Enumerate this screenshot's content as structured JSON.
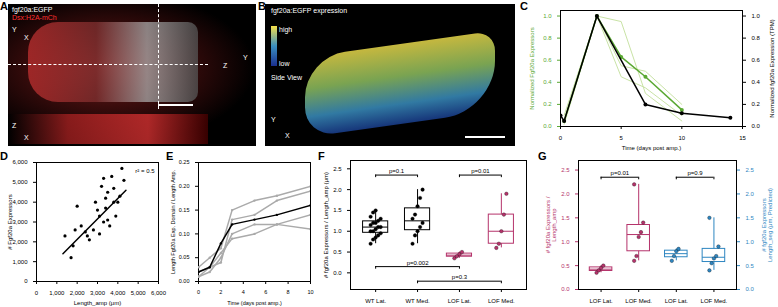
{
  "images": [
    {
      "panel": "A",
      "labels": [
        "fgf20a:EGFP",
        "Dsx:H2A-mCh"
      ],
      "axes": [
        "Y",
        "X",
        "Z",
        "X",
        "Y",
        "Z"
      ]
    },
    {
      "panel": "B",
      "title": "fgf20a:EGFP expression",
      "colorbar": [
        "high",
        "low"
      ],
      "view": "Side View",
      "axes": [
        "Y",
        "X"
      ]
    }
  ],
  "chart_data": [
    {
      "panel": "C",
      "type": "line",
      "x_label": "Time (days post amp.)",
      "y_label": "Normalized Fgf20a Expressors",
      "y2_label": "Normalized fgf20a Expression (TPM)",
      "xlim": [
        0,
        15
      ],
      "xticks": [
        0,
        5,
        10,
        15
      ],
      "ylim": [
        0,
        1.05
      ],
      "yticks": [
        0,
        0.2,
        0.4,
        0.6,
        0.8,
        1
      ],
      "y2lim": [
        0,
        1.05
      ],
      "y2ticks": [
        0,
        0.2,
        0.4,
        0.6,
        0.8,
        1
      ],
      "series": [
        {
          "color": "#c9e3a6",
          "x": [
            0.3,
            3,
            5,
            7,
            10
          ],
          "values": [
            0.02,
            1,
            0.95,
            0.3,
            0.05
          ]
        },
        {
          "color": "#c9e3a6",
          "x": [
            0.3,
            3,
            5,
            7,
            10
          ],
          "values": [
            0.1,
            1,
            0.55,
            0.5,
            0.2
          ]
        },
        {
          "color": "#c9e3a6",
          "x": [
            0.3,
            3,
            5,
            7,
            10
          ],
          "values": [
            0.05,
            1,
            0.45,
            0.35,
            0.1
          ]
        },
        {
          "color": "#5aa832",
          "marker": "circle",
          "x": [
            0.3,
            3,
            5,
            7,
            10
          ],
          "values": [
            0.05,
            1,
            0.63,
            0.45,
            0.15
          ]
        },
        {
          "color": "#000000",
          "marker": "circle",
          "axis": "y2",
          "x": [
            0,
            0.3,
            3,
            7,
            10,
            14
          ],
          "values": [
            0.1,
            0.05,
            1,
            0.2,
            0.12,
            0.08
          ]
        }
      ]
    },
    {
      "panel": "D",
      "type": "scatter",
      "x_label": "Length_amp (μm)",
      "y_label": "# Fgf20a Expressors",
      "xlim": [
        0,
        6000
      ],
      "xticks": [
        0,
        1000,
        2000,
        3000,
        4000,
        5000,
        6000
      ],
      "ylim": [
        0,
        6000
      ],
      "yticks": [
        0,
        1000,
        2000,
        3000,
        4000,
        5000,
        6000
      ],
      "color": "#000000",
      "legend": "top-right",
      "x": [
        1400,
        1700,
        1800,
        1900,
        2000,
        2200,
        2400,
        2500,
        2600,
        2800,
        2900,
        3000,
        3100,
        3100,
        3200,
        3300,
        3300,
        3400,
        3400,
        3500,
        3500,
        3600,
        3700,
        3800,
        3800,
        3900,
        4000,
        4100,
        4200,
        4300
      ],
      "values": [
        2300,
        1200,
        1800,
        2600,
        3800,
        2800,
        2500,
        2300,
        2100,
        2600,
        4000,
        3600,
        3300,
        2400,
        4800,
        5200,
        3000,
        4200,
        3700,
        3100,
        4500,
        2800,
        5300,
        4000,
        4700,
        3300,
        4000,
        4300,
        5700,
        5100
      ],
      "fit": {
        "label": "r² = 0.5",
        "x": [
          1300,
          4400
        ],
        "values": [
          1400,
          4600
        ]
      }
    },
    {
      "panel": "E",
      "type": "line",
      "x_label": "Time (days post amp.)",
      "y_label": "Length Fgf20a Exp. Domain / Length Amp.",
      "xlim": [
        0,
        10
      ],
      "xticks": [
        0,
        2,
        4,
        6,
        8,
        10
      ],
      "ylim": [
        0,
        0.25
      ],
      "yticks": [
        0,
        0.05,
        0.1,
        0.15,
        0.2,
        0.25
      ],
      "series": [
        {
          "color": "#aaaaaa",
          "x": [
            0,
            1,
            2,
            3,
            5,
            7,
            10
          ],
          "values": [
            0.03,
            0.05,
            0.07,
            0.15,
            0.17,
            0.18,
            0.2
          ]
        },
        {
          "color": "#aaaaaa",
          "x": [
            0,
            1,
            2,
            3,
            5,
            7,
            10
          ],
          "values": [
            0.01,
            0.02,
            0.05,
            0.1,
            0.12,
            0.12,
            0.11
          ]
        },
        {
          "color": "#aaaaaa",
          "x": [
            0,
            1,
            2,
            3,
            5,
            7,
            10
          ],
          "values": [
            0.02,
            0.03,
            0.04,
            0.13,
            0.14,
            0.17,
            0.19
          ]
        },
        {
          "color": "#aaaaaa",
          "x": [
            0,
            1,
            2,
            3,
            5,
            7,
            10
          ],
          "values": [
            0.01,
            0.03,
            0.06,
            0.09,
            0.1,
            0.12,
            0.14
          ]
        },
        {
          "color": "#000000",
          "x": [
            0,
            1,
            2,
            3,
            5,
            7,
            10
          ],
          "values": [
            0.02,
            0.03,
            0.08,
            0.12,
            0.13,
            0.14,
            0.16
          ]
        }
      ]
    },
    {
      "panel": "F",
      "type": "box",
      "y_label": "# fgf20a Expressors / Length_amp (μm)",
      "categories": [
        "WT Lat.",
        "WT Med.",
        "LOF Lat.",
        "LOF Med."
      ],
      "colors": [
        "#000000",
        "#000000",
        "#b5336b",
        "#b5336b"
      ],
      "points": [
        [
          0.7,
          0.8,
          0.85,
          0.9,
          0.95,
          1.0,
          1.0,
          1.05,
          1.1,
          1.1,
          1.15,
          1.2,
          1.2,
          1.25,
          1.3,
          1.35,
          1.45,
          1.5
        ],
        [
          0.7,
          0.9,
          1.0,
          1.1,
          1.2,
          1.3,
          1.4,
          1.6,
          1.8,
          2.0
        ],
        [
          0.35,
          0.4,
          0.45,
          0.5
        ],
        [
          0.6,
          0.7,
          1.0,
          1.4,
          1.9
        ]
      ],
      "ylim": [
        -0.4,
        2.7
      ],
      "yticks": [
        0,
        0.5,
        1,
        1.5,
        2,
        2.5
      ],
      "annotations": [
        {
          "text": "p=0.1",
          "between": [
            "WT Lat.",
            "WT Med."
          ],
          "y": 2.35
        },
        {
          "text": "p=0.01",
          "between": [
            "LOF Lat.",
            "LOF Med."
          ],
          "y": 2.35
        },
        {
          "text": "p=0.002",
          "between": [
            "WT Lat.",
            "LOF Lat."
          ],
          "y": 0.15
        },
        {
          "text": "p=0.3",
          "between": [
            "WT Med.",
            "LOF Med."
          ],
          "y": -0.2
        }
      ]
    },
    {
      "panel": "G",
      "type": "box",
      "y_label": "# fgf20a Expressors /\nLength_amp",
      "y2_label": "# fgf20a Expressors\nLength_seg (μm, Predicted)",
      "categories": [
        "LOF Lat.",
        "LOF Med.",
        "LOF Lat.",
        "LOF Med."
      ],
      "ylim": [
        0,
        2.7
      ],
      "yticks": [
        0,
        0.5,
        1,
        1.5,
        2,
        2.5
      ],
      "y2lim": [
        0,
        2.7
      ],
      "y2ticks": [
        0,
        0.5,
        1,
        1.5,
        2,
        2.5
      ],
      "groups": [
        {
          "axis": "y",
          "color": "#b5336b",
          "points": [
            [
              0.35,
              0.4,
              0.45,
              0.5
            ],
            [
              0.6,
              0.7,
              1.1,
              1.2,
              1.4,
              2.2
            ]
          ],
          "annotation": {
            "text": "p=0.01",
            "y": 2.35
          }
        },
        {
          "axis": "y2",
          "color": "#2e86c1",
          "points": [
            [
              0.6,
              0.7,
              0.8,
              0.85
            ],
            [
              0.4,
              0.55,
              0.65,
              0.7,
              0.9,
              1.5
            ]
          ],
          "annotation": {
            "text": "p=0.9",
            "y": 2.35
          }
        }
      ]
    }
  ]
}
